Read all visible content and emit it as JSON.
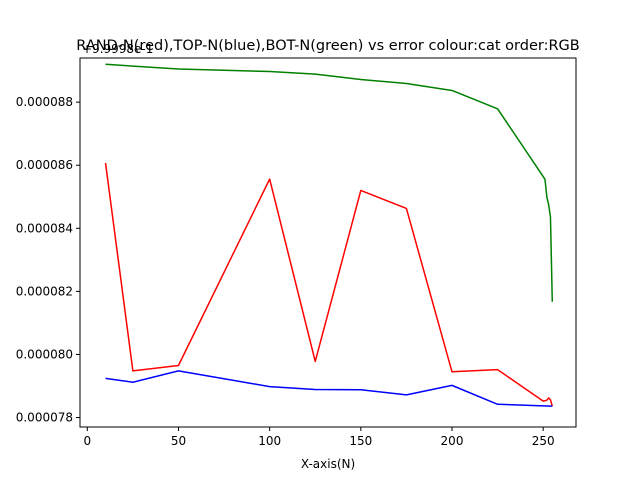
{
  "chart_data": {
    "type": "line",
    "title": "RAND-N(red),TOP-N(blue),BOT-N(green) vs error colour:cat order:RGB",
    "xlabel": "X-axis(N)",
    "ylabel": "",
    "offset_text": "+9.9998e-1",
    "xlim": [
      -4,
      268
    ],
    "ylim": [
      7.77e-05,
      8.94e-05
    ],
    "xticks": [
      0,
      50,
      100,
      150,
      200,
      250
    ],
    "yticks": [
      7.8e-05,
      8e-05,
      8.2e-05,
      8.4e-05,
      8.6e-05,
      8.8e-05
    ],
    "ytick_labels": [
      "0.000078",
      "0.000080",
      "0.000082",
      "0.000084",
      "0.000086",
      "0.000088"
    ],
    "grid": false,
    "series": [
      {
        "color": "#ff0000",
        "x": [
          10,
          25,
          50,
          100,
          125,
          150,
          175,
          200,
          225,
          250,
          252,
          253,
          254,
          255
        ],
        "y": [
          8.607e-05,
          7.948e-05,
          7.965e-05,
          8.556e-05,
          7.978e-05,
          8.52e-05,
          8.463e-05,
          7.945e-05,
          7.952e-05,
          7.852e-05,
          7.855e-05,
          7.862e-05,
          7.856e-05,
          7.836e-05
        ]
      },
      {
        "color": "#0000ff",
        "x": [
          10,
          25,
          50,
          100,
          125,
          150,
          175,
          200,
          225,
          250,
          255
        ],
        "y": [
          7.924e-05,
          7.912e-05,
          7.948e-05,
          7.898e-05,
          7.889e-05,
          7.888e-05,
          7.872e-05,
          7.902e-05,
          7.842e-05,
          7.837e-05,
          7.836e-05
        ]
      },
      {
        "color": "#008000",
        "x": [
          10,
          50,
          100,
          125,
          150,
          175,
          200,
          225,
          250,
          251,
          252,
          253,
          254,
          255
        ],
        "y": [
          8.92e-05,
          8.905e-05,
          8.897e-05,
          8.889e-05,
          8.872e-05,
          8.859e-05,
          8.837e-05,
          8.779e-05,
          8.564e-05,
          8.555e-05,
          8.5e-05,
          8.475e-05,
          8.435e-05,
          8.167e-05
        ]
      }
    ]
  }
}
